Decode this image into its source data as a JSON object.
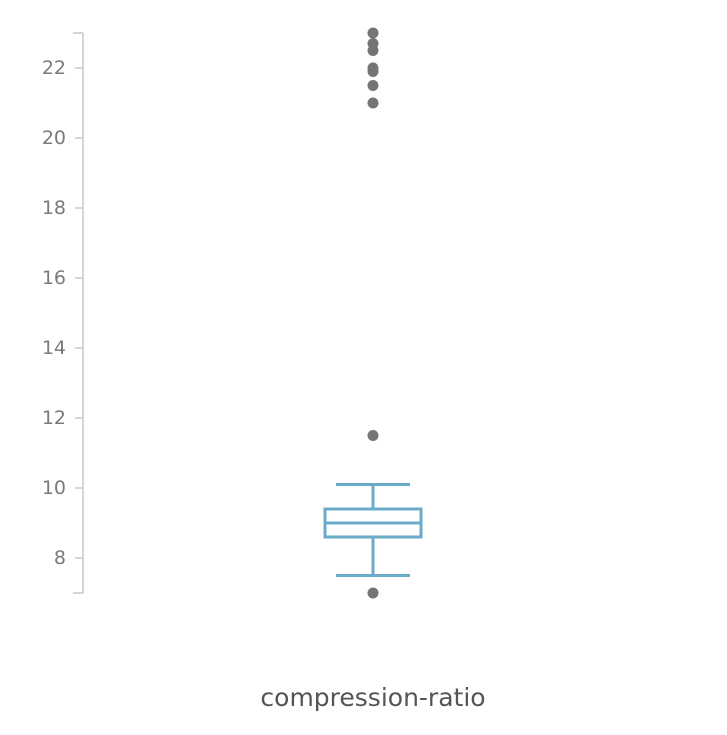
{
  "chart_data": {
    "type": "boxplot",
    "title": "",
    "xlabel": "",
    "ylabel": "",
    "ylim": [
      7,
      23
    ],
    "yticks": [
      8,
      10,
      12,
      14,
      16,
      18,
      20,
      22
    ],
    "y_tick_labels": [
      "8",
      "10",
      "12",
      "14",
      "16",
      "18",
      "20",
      "22"
    ],
    "categories": [
      "compression-ratio"
    ],
    "boxes": [
      {
        "category": "compression-ratio",
        "whisker_low": 7.5,
        "q1": 8.6,
        "median": 9.0,
        "q3": 9.4,
        "whisker_high": 10.1,
        "outliers": [
          7.0,
          11.5,
          21.0,
          21.5,
          21.9,
          22.0,
          22.5,
          22.7,
          23.0
        ]
      }
    ],
    "colors": {
      "box": "#6aabc9",
      "outlier": "#757575",
      "axis": "#c8c8c8",
      "tick_text": "#7a7a7a",
      "category_text": "#555555"
    },
    "grid": false
  }
}
